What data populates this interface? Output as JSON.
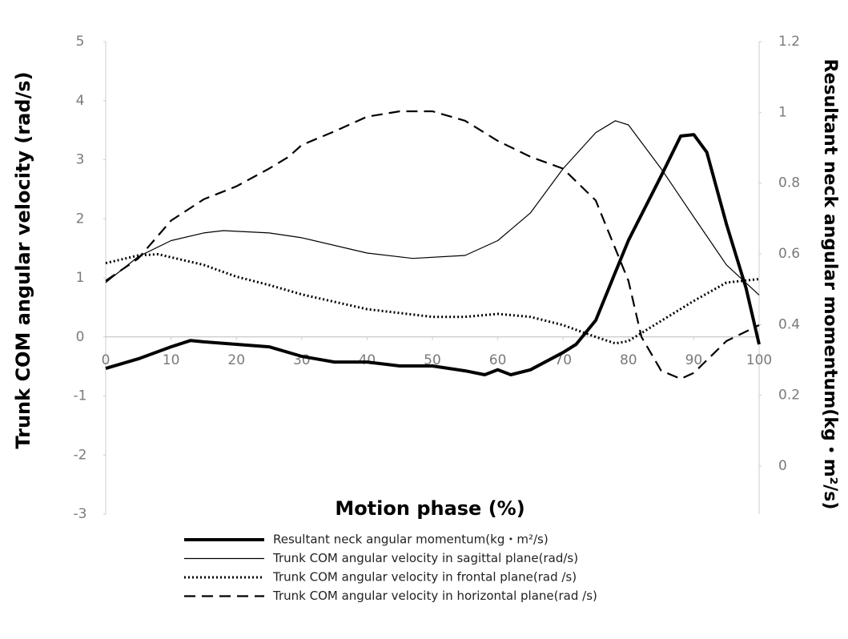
{
  "chart_data": {
    "type": "line",
    "xlabel": "Motion phase (%)",
    "ylabel": "Trunk COM angular velocity (rad/s)",
    "y2label": "Resultant neck angular momentum(kg・m²/s)",
    "xlim": [
      0,
      100
    ],
    "xticks": [
      0,
      10,
      20,
      30,
      40,
      50,
      60,
      70,
      80,
      90,
      100
    ],
    "ylim": [
      -3,
      5
    ],
    "yticks": [
      -3,
      -2,
      -1,
      0,
      1,
      2,
      3,
      4,
      5
    ],
    "y2lim": [
      -0.136,
      1.2
    ],
    "y2ticks": [
      0,
      0.2,
      0.4,
      0.6,
      0.8,
      1,
      1.2
    ],
    "legend": "bottom",
    "series": [
      {
        "name": "Resultant neck angular momentum(kg・m²/s)",
        "color": "#000000",
        "linestyle": "solid",
        "linewidth": 4,
        "axis": "y2",
        "x": [
          0,
          5,
          10,
          13,
          15,
          20,
          25,
          30,
          35,
          40,
          45,
          50,
          55,
          58,
          60,
          62,
          65,
          70,
          72,
          75,
          78,
          80,
          85,
          88,
          90,
          92,
          95,
          98,
          100
        ],
        "values": [
          0.276,
          0.303,
          0.337,
          0.355,
          0.351,
          0.344,
          0.337,
          0.31,
          0.294,
          0.294,
          0.283,
          0.283,
          0.269,
          0.258,
          0.272,
          0.258,
          0.272,
          0.321,
          0.344,
          0.412,
          0.548,
          0.638,
          0.82,
          0.933,
          0.937,
          0.887,
          0.684,
          0.503,
          0.344
        ]
      },
      {
        "name": "Trunk COM angular velocity in sagittal plane(rad/s)",
        "color": "#000000",
        "linestyle": "solid",
        "linewidth": 1.2,
        "x": [
          0,
          5,
          10,
          15,
          18,
          25,
          30,
          40,
          47,
          55,
          60,
          65,
          70,
          75,
          78,
          80,
          85,
          90,
          95,
          100
        ],
        "values": [
          0.92,
          1.36,
          1.63,
          1.76,
          1.8,
          1.76,
          1.68,
          1.42,
          1.33,
          1.38,
          1.63,
          2.1,
          2.85,
          3.46,
          3.66,
          3.59,
          2.85,
          2.03,
          1.22,
          0.71
        ]
      },
      {
        "name": "Trunk COM angular velocity in frontal plane(rad /s)",
        "color": "#000000",
        "linestyle": "dotted",
        "linewidth": 3,
        "x": [
          0,
          5,
          8,
          15,
          20,
          25,
          30,
          40,
          50,
          55,
          60,
          65,
          70,
          75,
          78,
          80,
          85,
          90,
          95,
          100
        ],
        "values": [
          1.25,
          1.38,
          1.4,
          1.22,
          1.02,
          0.88,
          0.72,
          0.47,
          0.34,
          0.34,
          0.39,
          0.34,
          0.2,
          0,
          -0.11,
          -0.07,
          0.27,
          0.61,
          0.92,
          0.98
        ]
      },
      {
        "name": "Trunk COM angular velocity in horizontal plane(rad /s)",
        "color": "#000000",
        "linestyle": "dashed",
        "linewidth": 2.2,
        "x": [
          0,
          5,
          10,
          15,
          20,
          25,
          28,
          30,
          35,
          40,
          45,
          50,
          55,
          60,
          65,
          70,
          75,
          80,
          82,
          85,
          88,
          90,
          95,
          100
        ],
        "values": [
          0.95,
          1.33,
          1.97,
          2.33,
          2.55,
          2.85,
          3.05,
          3.25,
          3.48,
          3.73,
          3.82,
          3.82,
          3.66,
          3.32,
          3.05,
          2.85,
          2.31,
          0.95,
          0,
          -0.57,
          -0.71,
          -0.61,
          -0.07,
          0.2
        ]
      }
    ]
  }
}
